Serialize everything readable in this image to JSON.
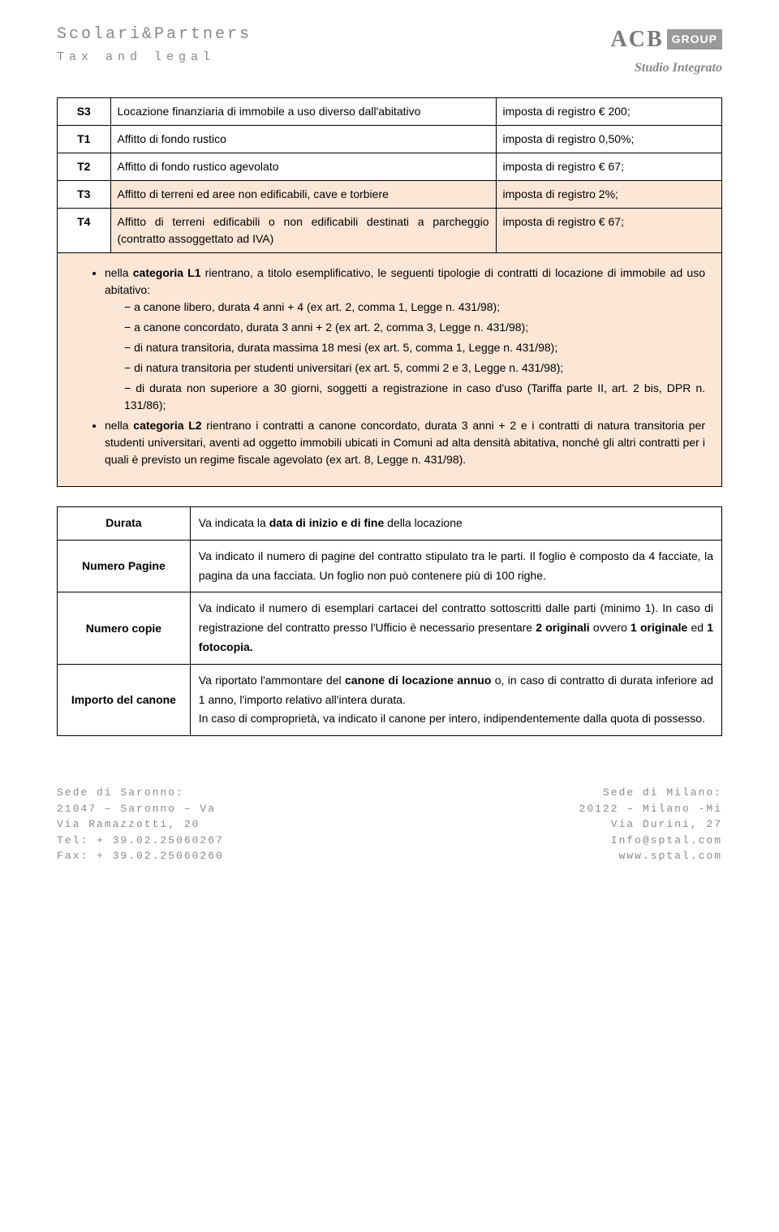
{
  "header": {
    "left_main": "Scolari&Partners",
    "left_sub": "Tax  and  legal",
    "right_acb": "ACB",
    "right_group": "GROUP",
    "right_sub": "Studio Integrato"
  },
  "table_rows": [
    {
      "code": "S3",
      "desc": "Locazione finanziaria di immobile a uso diverso dall'abitativo",
      "tax": "imposta di registro € 200;",
      "hl": false
    },
    {
      "code": "T1",
      "desc": "Affitto di fondo rustico",
      "tax": "imposta di registro 0,50%;",
      "hl": false
    },
    {
      "code": "T2",
      "desc": "Affitto di fondo rustico agevolato",
      "tax": "imposta di registro € 67;",
      "hl": false
    },
    {
      "code": "T3",
      "desc": "Affitto di terreni ed aree non edificabili, cave e torbiere",
      "tax": "imposta di registro 2%;",
      "hl": true
    },
    {
      "code": "T4",
      "desc": "Affitto di terreni edificabili o non edificabili destinati a parcheggio (contratto assoggettato ad IVA)",
      "tax": "imposta di registro € 67;",
      "hl": true
    }
  ],
  "bullets": {
    "intro_a": "nella ",
    "cat1": "categoria L1",
    "intro_b": " rientrano, a titolo esemplificativo, le seguenti tipologie di contratti di locazione di immobile ad uso abitativo:",
    "subs1": [
      "a canone libero, durata 4 anni + 4 (ex art. 2, comma 1, Legge n. 431/98);",
      "a canone concordato, durata 3 anni + 2 (ex art. 2, comma 3, Legge n. 431/98);",
      "di natura transitoria, durata massima 18 mesi (ex art. 5, comma 1, Legge n. 431/98);",
      "di natura transitoria per studenti universitari (ex art. 5, commi 2 e 3, Legge n. 431/98);",
      "di durata non superiore a 30 giorni, soggetti a registrazione in caso d'uso (Tariffa parte II, art. 2 bis, DPR n. 131/86);"
    ],
    "intro2_a": "nella ",
    "cat2": "categoria L2",
    "intro2_b": " rientrano i contratti a canone concordato, durata 3 anni + 2 e i contratti di natura transitoria per studenti universitari, aventi ad oggetto immobili ubicati in Comuni ad alta densità abitativa, nonché gli altri contratti per i quali è previsto un regime fiscale agevolato (ex art. 8, Legge n. 431/98)."
  },
  "defs": [
    {
      "label": "Durata",
      "body_pre": "Va indicata la ",
      "body_strong": "data di inizio e di fine",
      "body_post": " della locazione"
    },
    {
      "label": "Numero Pagine",
      "body": "Va indicato il numero di pagine del contratto stipulato tra le parti. Il foglio è composto da 4 facciate, la pagina da una facciata. Un foglio non può contenere più di 100 righe."
    },
    {
      "label": "Numero copie",
      "body_pre": "Va indicato il numero di esemplari cartacei del contratto sottoscritti dalle parti (minimo 1). In caso di registrazione del contratto presso l'Ufficio è necessario presentare ",
      "body_strong": "2 originali",
      "body_mid": " ovvero ",
      "body_strong2": "1 originale",
      "body_mid2": " ed ",
      "body_strong3": "1 fotocopia.",
      "body_post": ""
    },
    {
      "label": "Importo del canone",
      "body_pre": "Va riportato l'ammontare del ",
      "body_strong": "canone di locazione annuo",
      "body_post": " o, in caso di contratto di durata inferiore ad 1 anno, l'importo relativo all'intera durata.",
      "body_extra": "In caso di comproprietà, va indicato il canone per intero, indipendentemente dalla quota di possesso."
    }
  ],
  "footer": {
    "left": [
      "Sede di Saronno:",
      "21047 – Saronno – Va",
      "Via Ramazzotti, 20",
      "Tel: + 39.02.25060267",
      "Fax: + 39.02.25060260"
    ],
    "right": [
      "Sede di Milano:",
      "20122 – Milano -Mi",
      "Via Durini, 27",
      "Info@sptal.com",
      "www.sptal.com"
    ]
  }
}
